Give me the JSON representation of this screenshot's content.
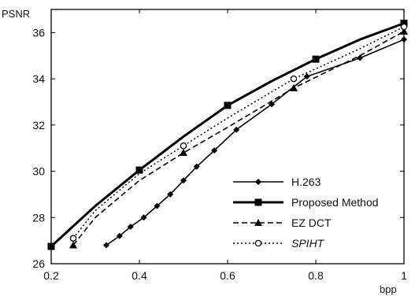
{
  "chart_data": {
    "type": "line",
    "title": "",
    "xlabel": "bpp",
    "ylabel": "PSNR",
    "xlim": [
      0.2,
      1.0
    ],
    "ylim": [
      26,
      37
    ],
    "grid": false,
    "legend_position": "bottom-right",
    "xticks": [
      0.2,
      0.4,
      0.6,
      0.8,
      1.0
    ],
    "xtick_labels": [
      "0.2",
      "0.4",
      "0.6",
      "0.8",
      "1"
    ],
    "yticks": [
      26,
      28,
      30,
      32,
      34,
      36
    ],
    "ytick_labels": [
      "26",
      "28",
      "30",
      "32",
      "34",
      "36"
    ],
    "series": [
      {
        "name": "H.263",
        "marker": "diamond",
        "line": "solid",
        "color": "#000000",
        "x": [
          0.325,
          0.355,
          0.38,
          0.41,
          0.44,
          0.47,
          0.5,
          0.53,
          0.57,
          0.62,
          0.7,
          0.78,
          0.9,
          1.0
        ],
        "y": [
          26.8,
          27.2,
          27.6,
          28.0,
          28.5,
          29.0,
          29.6,
          30.2,
          30.9,
          31.8,
          32.9,
          34.1,
          34.9,
          35.7
        ],
        "markers": [
          0.325,
          0.355,
          0.38,
          0.41,
          0.44,
          0.47,
          0.5,
          0.53,
          0.57,
          0.62,
          0.7,
          0.78,
          0.9,
          1.0
        ]
      },
      {
        "name": "Proposed Method",
        "marker": "square",
        "line": "thick",
        "color": "#000000",
        "x": [
          0.2,
          0.3,
          0.4,
          0.5,
          0.6,
          0.7,
          0.8,
          0.9,
          1.0
        ],
        "y": [
          26.75,
          28.5,
          30.05,
          31.5,
          32.85,
          33.9,
          34.85,
          35.7,
          36.4
        ],
        "markers": [
          0.2,
          0.4,
          0.6,
          0.8,
          1.0
        ]
      },
      {
        "name": "EZ DCT",
        "marker": "triangle",
        "line": "dashed",
        "color": "#000000",
        "x": [
          0.25,
          0.3,
          0.4,
          0.5,
          0.6,
          0.75,
          0.9,
          1.0
        ],
        "y": [
          26.8,
          28.0,
          29.6,
          30.8,
          31.9,
          33.6,
          35.0,
          36.05
        ],
        "markers": [
          0.25,
          0.5,
          0.75,
          1.0
        ]
      },
      {
        "name": "SPIHT",
        "marker": "circle",
        "line": "dotted",
        "color": "#000000",
        "x": [
          0.25,
          0.3,
          0.4,
          0.5,
          0.6,
          0.75,
          0.9,
          1.0
        ],
        "y": [
          27.1,
          28.3,
          29.9,
          31.1,
          32.3,
          34.0,
          35.3,
          36.25
        ],
        "markers": [
          0.25,
          0.5,
          0.75,
          1.0
        ]
      }
    ]
  }
}
